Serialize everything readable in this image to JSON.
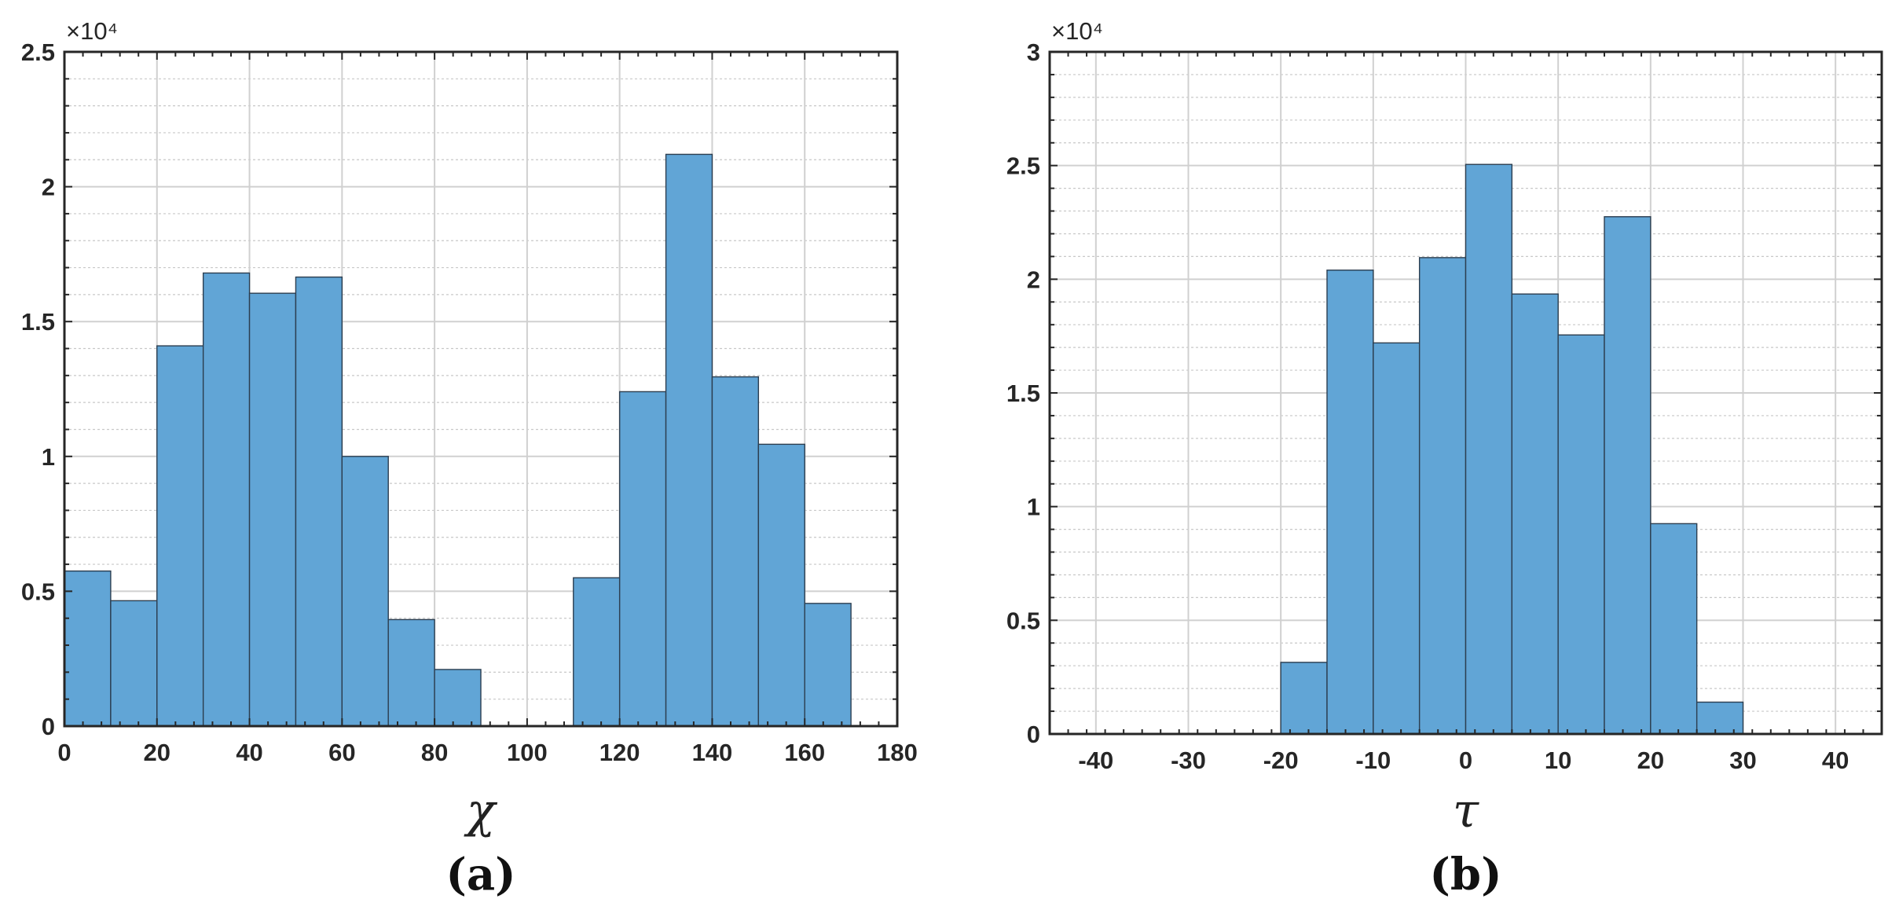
{
  "chart_data": [
    {
      "type": "bar",
      "panel_label": "(a)",
      "xlabel": "χ",
      "ylabel": "",
      "y_exponent_label": "×10⁴",
      "xlim": [
        0,
        180
      ],
      "ylim": [
        0,
        25000
      ],
      "x_ticks": [
        0,
        20,
        40,
        60,
        80,
        100,
        120,
        140,
        160,
        180
      ],
      "y_ticks": [
        0,
        5000,
        10000,
        15000,
        20000,
        25000
      ],
      "y_tick_labels": [
        "0",
        "0.5",
        "1",
        "1.5",
        "2",
        "2.5"
      ],
      "grid": true,
      "bin_width": 10,
      "bin_starts": [
        0,
        10,
        20,
        30,
        40,
        50,
        60,
        70,
        80,
        90,
        100,
        110,
        120,
        130,
        140,
        150,
        160
      ],
      "values": [
        5750,
        4650,
        14100,
        16800,
        16050,
        16650,
        10000,
        3950,
        2100,
        0,
        0,
        5500,
        12400,
        21200,
        12950,
        10450,
        4550
      ]
    },
    {
      "type": "bar",
      "panel_label": "(b)",
      "xlabel": "τ",
      "ylabel": "",
      "y_exponent_label": "×10⁴",
      "xlim": [
        -45,
        45
      ],
      "ylim": [
        0,
        30000
      ],
      "x_ticks": [
        -40,
        -30,
        -20,
        -10,
        0,
        10,
        20,
        30,
        40
      ],
      "y_ticks": [
        0,
        5000,
        10000,
        15000,
        20000,
        25000,
        30000
      ],
      "y_tick_labels": [
        "0",
        "0.5",
        "1",
        "1.5",
        "2",
        "2.5",
        "3"
      ],
      "grid": true,
      "bin_width": 5,
      "bin_starts": [
        -20,
        -15,
        -10,
        -5,
        0,
        5,
        10,
        15,
        20,
        25
      ],
      "values": [
        3150,
        20400,
        17200,
        20950,
        25050,
        19350,
        17550,
        22750,
        9250,
        1400
      ]
    }
  ]
}
